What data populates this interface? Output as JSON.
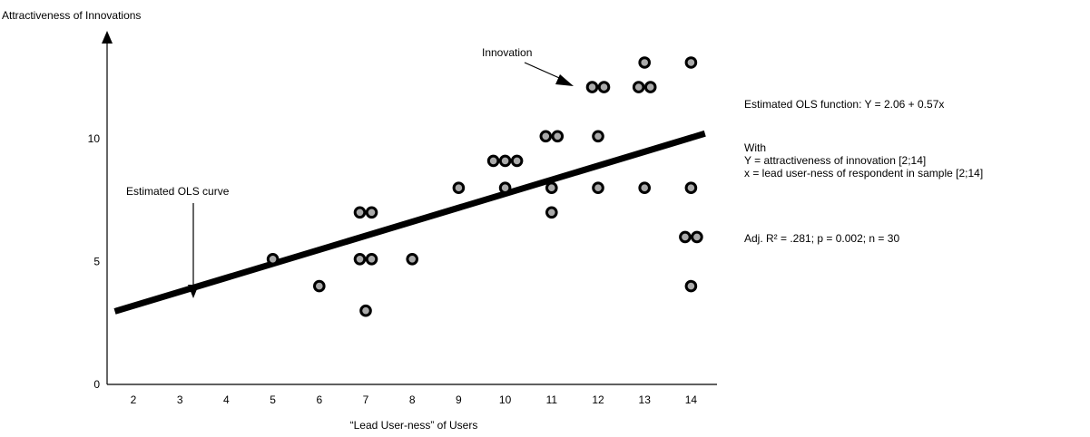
{
  "chart_data": {
    "type": "scatter",
    "ylabel": "Attractiveness of Innovations",
    "xlabel": "“Lead User-ness” of Users",
    "x_ticks": [
      2,
      3,
      4,
      5,
      6,
      7,
      8,
      9,
      10,
      11,
      12,
      13,
      14
    ],
    "y_ticks": [
      0,
      5,
      10
    ],
    "xlim": [
      1.5,
      14.5
    ],
    "ylim": [
      0,
      13
    ],
    "points": [
      {
        "x": 5,
        "y": 5.1
      },
      {
        "x": 6,
        "y": 4
      },
      {
        "x": 7,
        "y": 3
      },
      {
        "x": 7,
        "y": 5.1
      },
      {
        "x": 7,
        "y": 5.1
      },
      {
        "x": 7,
        "y": 7
      },
      {
        "x": 7,
        "y": 7
      },
      {
        "x": 8,
        "y": 5.1
      },
      {
        "x": 9,
        "y": 8
      },
      {
        "x": 10,
        "y": 8
      },
      {
        "x": 10,
        "y": 9.1
      },
      {
        "x": 10,
        "y": 9.1
      },
      {
        "x": 10,
        "y": 9.1
      },
      {
        "x": 11,
        "y": 7
      },
      {
        "x": 11,
        "y": 8
      },
      {
        "x": 11,
        "y": 10.1
      },
      {
        "x": 11,
        "y": 10.1
      },
      {
        "x": 12,
        "y": 8
      },
      {
        "x": 12,
        "y": 10.1
      },
      {
        "x": 12,
        "y": 12.1
      },
      {
        "x": 12,
        "y": 12.1
      },
      {
        "x": 13,
        "y": 8
      },
      {
        "x": 13,
        "y": 12.1
      },
      {
        "x": 13,
        "y": 12.1
      },
      {
        "x": 13,
        "y": 13.1
      },
      {
        "x": 14,
        "y": 4
      },
      {
        "x": 14,
        "y": 6
      },
      {
        "x": 14,
        "y": 6
      },
      {
        "x": 14,
        "y": 8
      },
      {
        "x": 14,
        "y": 13.1
      }
    ],
    "fit_line": {
      "intercept": 2.06,
      "slope": 0.57
    },
    "annotations": {
      "ols_curve_label": "Estimated OLS curve",
      "innovation_label": "Innovation"
    },
    "grid": false,
    "colors": {
      "point_fill": "#aaaaaa",
      "point_stroke": "#000000",
      "line": "#000000"
    }
  },
  "side_panel": {
    "equation": "Estimated OLS function: Y = 2.06 + 0.57x",
    "with_label": "With",
    "y_definition": "Y = attractiveness of innovation [2;14]",
    "x_definition": "x = lead user-ness of respondent in sample [2;14]",
    "stats": "Adj. R² = .281; p = 0.002; n = 30"
  }
}
